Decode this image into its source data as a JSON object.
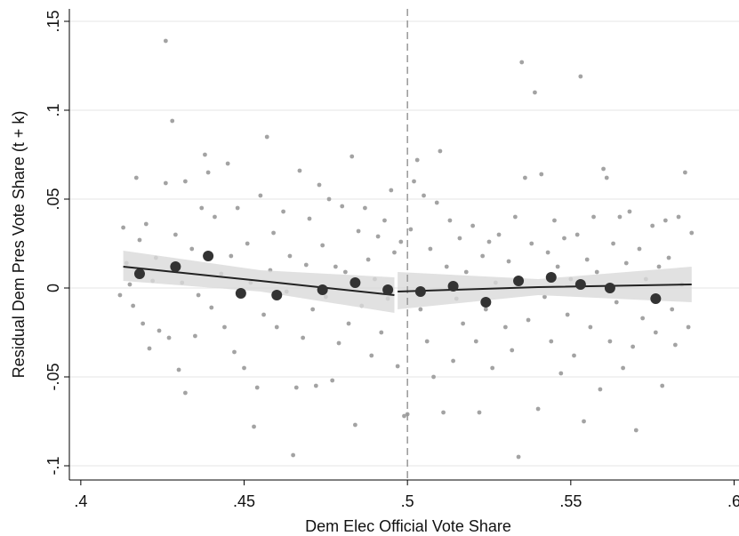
{
  "chart_data": {
    "type": "scatter",
    "x_label": "Dem Elec Official Vote Share",
    "y_label": "Residual Dem Pres Vote Share (t + k)",
    "xlim": [
      0.3965,
      0.6015
    ],
    "ylim": [
      -0.108,
      0.157
    ],
    "xticks": [
      {
        "value": 0.4,
        "label": ".4"
      },
      {
        "value": 0.45,
        "label": ".45"
      },
      {
        "value": 0.5,
        "label": ".5"
      },
      {
        "value": 0.55,
        "label": ".55"
      },
      {
        "value": 0.6,
        "label": ".6"
      }
    ],
    "yticks": [
      {
        "value": -0.1,
        "label": "-.1"
      },
      {
        "value": -0.05,
        "label": "-.05"
      },
      0,
      {
        "value": 0.05,
        "label": ".05"
      },
      {
        "value": 0.1,
        "label": ".1"
      },
      {
        "value": 0.15,
        "label": ".15"
      }
    ],
    "grid": true,
    "cutoff": 0.5,
    "points_color": "#a3a3a3",
    "points": [
      [
        0.412,
        -0.004
      ],
      [
        0.413,
        0.034
      ],
      [
        0.414,
        0.014
      ],
      [
        0.415,
        0.002
      ],
      [
        0.416,
        -0.01
      ],
      [
        0.417,
        0.062
      ],
      [
        0.418,
        0.027
      ],
      [
        0.419,
        -0.02
      ],
      [
        0.42,
        0.036
      ],
      [
        0.421,
        -0.034
      ],
      [
        0.422,
        0.004
      ],
      [
        0.423,
        0.017
      ],
      [
        0.424,
        -0.024
      ],
      [
        0.426,
        0.139
      ],
      [
        0.426,
        0.059
      ],
      [
        0.427,
        -0.028
      ],
      [
        0.428,
        0.094
      ],
      [
        0.429,
        0.03
      ],
      [
        0.43,
        -0.046
      ],
      [
        0.431,
        0.003
      ],
      [
        0.432,
        0.06
      ],
      [
        0.432,
        -0.059
      ],
      [
        0.434,
        0.022
      ],
      [
        0.435,
        -0.027
      ],
      [
        0.436,
        -0.004
      ],
      [
        0.437,
        0.045
      ],
      [
        0.438,
        0.075
      ],
      [
        0.439,
        0.065
      ],
      [
        0.44,
        -0.011
      ],
      [
        0.441,
        0.04
      ],
      [
        0.443,
        0.008
      ],
      [
        0.444,
        -0.022
      ],
      [
        0.445,
        0.07
      ],
      [
        0.446,
        0.018
      ],
      [
        0.447,
        -0.036
      ],
      [
        0.448,
        0.045
      ],
      [
        0.45,
        -0.045
      ],
      [
        0.451,
        0.025
      ],
      [
        0.452,
        0.003
      ],
      [
        0.453,
        -0.078
      ],
      [
        0.454,
        -0.056
      ],
      [
        0.455,
        0.052
      ],
      [
        0.456,
        -0.015
      ],
      [
        0.457,
        0.085
      ],
      [
        0.458,
        0.01
      ],
      [
        0.459,
        0.031
      ],
      [
        0.46,
        -0.022
      ],
      [
        0.462,
        0.043
      ],
      [
        0.463,
        -0.002
      ],
      [
        0.464,
        0.018
      ],
      [
        0.465,
        -0.094
      ],
      [
        0.466,
        -0.056
      ],
      [
        0.467,
        0.066
      ],
      [
        0.468,
        -0.028
      ],
      [
        0.469,
        0.013
      ],
      [
        0.47,
        0.039
      ],
      [
        0.471,
        -0.012
      ],
      [
        0.472,
        -0.055
      ],
      [
        0.473,
        0.058
      ],
      [
        0.474,
        0.024
      ],
      [
        0.475,
        -0.005
      ],
      [
        0.476,
        0.05
      ],
      [
        0.477,
        -0.052
      ],
      [
        0.478,
        0.012
      ],
      [
        0.479,
        -0.031
      ],
      [
        0.48,
        0.046
      ],
      [
        0.481,
        0.009
      ],
      [
        0.482,
        -0.02
      ],
      [
        0.483,
        0.074
      ],
      [
        0.484,
        -0.077
      ],
      [
        0.485,
        0.032
      ],
      [
        0.486,
        -0.01
      ],
      [
        0.487,
        0.045
      ],
      [
        0.488,
        0.016
      ],
      [
        0.489,
        -0.038
      ],
      [
        0.49,
        0.005
      ],
      [
        0.491,
        0.029
      ],
      [
        0.492,
        -0.025
      ],
      [
        0.493,
        0.038
      ],
      [
        0.494,
        -0.006
      ],
      [
        0.495,
        0.055
      ],
      [
        0.496,
        0.02
      ],
      [
        0.497,
        -0.044
      ],
      [
        0.498,
        0.026
      ],
      [
        0.499,
        -0.072
      ],
      [
        0.5,
        -0.071
      ],
      [
        0.501,
        0.033
      ],
      [
        0.502,
        0.06
      ],
      [
        0.503,
        0.072
      ],
      [
        0.504,
        -0.012
      ],
      [
        0.505,
        0.052
      ],
      [
        0.506,
        -0.03
      ],
      [
        0.507,
        0.022
      ],
      [
        0.508,
        -0.05
      ],
      [
        0.509,
        0.048
      ],
      [
        0.51,
        0.077
      ],
      [
        0.511,
        -0.07
      ],
      [
        0.512,
        0.012
      ],
      [
        0.513,
        0.038
      ],
      [
        0.514,
        -0.041
      ],
      [
        0.515,
        -0.006
      ],
      [
        0.516,
        0.028
      ],
      [
        0.517,
        -0.02
      ],
      [
        0.518,
        0.009
      ],
      [
        0.52,
        0.035
      ],
      [
        0.521,
        -0.03
      ],
      [
        0.522,
        -0.07
      ],
      [
        0.523,
        0.018
      ],
      [
        0.524,
        -0.012
      ],
      [
        0.525,
        0.026
      ],
      [
        0.526,
        -0.045
      ],
      [
        0.527,
        0.003
      ],
      [
        0.528,
        0.03
      ],
      [
        0.53,
        -0.022
      ],
      [
        0.531,
        0.015
      ],
      [
        0.532,
        -0.035
      ],
      [
        0.533,
        0.04
      ],
      [
        0.534,
        -0.095
      ],
      [
        0.535,
        0.127
      ],
      [
        0.536,
        0.062
      ],
      [
        0.537,
        -0.018
      ],
      [
        0.538,
        0.025
      ],
      [
        0.539,
        0.11
      ],
      [
        0.54,
        -0.068
      ],
      [
        0.541,
        0.064
      ],
      [
        0.542,
        -0.005
      ],
      [
        0.543,
        0.02
      ],
      [
        0.544,
        -0.03
      ],
      [
        0.545,
        0.038
      ],
      [
        0.546,
        0.012
      ],
      [
        0.547,
        -0.048
      ],
      [
        0.548,
        0.028
      ],
      [
        0.549,
        -0.015
      ],
      [
        0.55,
        0.005
      ],
      [
        0.551,
        -0.038
      ],
      [
        0.552,
        0.03
      ],
      [
        0.553,
        0.119
      ],
      [
        0.554,
        -0.075
      ],
      [
        0.555,
        0.016
      ],
      [
        0.556,
        -0.022
      ],
      [
        0.557,
        0.04
      ],
      [
        0.558,
        0.009
      ],
      [
        0.559,
        -0.057
      ],
      [
        0.56,
        0.067
      ],
      [
        0.561,
        0.062
      ],
      [
        0.562,
        -0.03
      ],
      [
        0.563,
        0.025
      ],
      [
        0.564,
        -0.008
      ],
      [
        0.565,
        0.04
      ],
      [
        0.566,
        -0.045
      ],
      [
        0.567,
        0.014
      ],
      [
        0.568,
        0.043
      ],
      [
        0.569,
        -0.033
      ],
      [
        0.57,
        -0.08
      ],
      [
        0.571,
        0.022
      ],
      [
        0.572,
        -0.017
      ],
      [
        0.573,
        0.005
      ],
      [
        0.575,
        0.035
      ],
      [
        0.576,
        -0.025
      ],
      [
        0.577,
        0.012
      ],
      [
        0.578,
        -0.055
      ],
      [
        0.579,
        0.038
      ],
      [
        0.58,
        0.017
      ],
      [
        0.581,
        -0.012
      ],
      [
        0.582,
        -0.032
      ],
      [
        0.583,
        0.04
      ],
      [
        0.584,
        0.002
      ],
      [
        0.585,
        0.065
      ],
      [
        0.586,
        -0.022
      ],
      [
        0.587,
        0.031
      ]
    ],
    "bins_color": "#333333",
    "bins": [
      [
        0.418,
        0.008
      ],
      [
        0.429,
        0.012
      ],
      [
        0.439,
        0.018
      ],
      [
        0.449,
        -0.003
      ],
      [
        0.46,
        -0.004
      ],
      [
        0.474,
        -0.001
      ],
      [
        0.484,
        0.003
      ],
      [
        0.494,
        -0.001
      ],
      [
        0.504,
        -0.002
      ],
      [
        0.514,
        0.001
      ],
      [
        0.524,
        -0.008
      ],
      [
        0.534,
        0.004
      ],
      [
        0.544,
        0.006
      ],
      [
        0.553,
        0.002
      ],
      [
        0.562,
        0.0
      ],
      [
        0.576,
        -0.006
      ]
    ],
    "fit_color": "#222222",
    "band_color": "#d9d9d9",
    "fits": [
      {
        "x": [
          0.413,
          0.455,
          0.496
        ],
        "values": [
          0.012,
          0.004,
          -0.004
        ],
        "lower": [
          0.004,
          -0.002,
          -0.014
        ],
        "upper": [
          0.021,
          0.01,
          0.006
        ]
      },
      {
        "x": [
          0.497,
          0.54,
          0.587
        ],
        "values": [
          -0.002,
          0.0005,
          0.002
        ],
        "lower": [
          -0.012,
          -0.004,
          -0.008
        ],
        "upper": [
          0.009,
          0.005,
          0.012
        ]
      }
    ]
  }
}
